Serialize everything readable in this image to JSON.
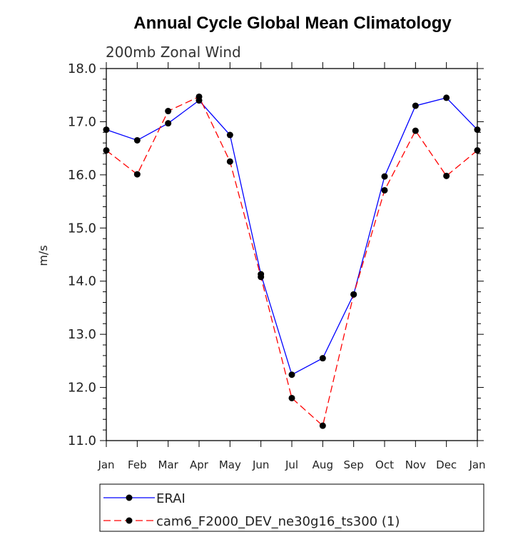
{
  "chart_data": {
    "type": "line",
    "title": "Annual Cycle Global Mean Climatology",
    "subtitle": "200mb Zonal Wind",
    "ylabel": "m/s",
    "xlabel": "",
    "categories": [
      "Jan",
      "Feb",
      "Mar",
      "Apr",
      "May",
      "Jun",
      "Jul",
      "Aug",
      "Sep",
      "Oct",
      "Nov",
      "Dec",
      "Jan"
    ],
    "ylim": [
      11.0,
      18.0
    ],
    "yticks": [
      "11.0",
      "12.0",
      "13.0",
      "14.0",
      "15.0",
      "16.0",
      "17.0",
      "18.0"
    ],
    "grid": false,
    "legend_position": "bottom",
    "series": [
      {
        "name": "ERAI",
        "color": "#0000ff",
        "dash": "solid",
        "values": [
          16.85,
          16.65,
          16.97,
          17.4,
          16.75,
          14.13,
          12.24,
          12.55,
          13.75,
          15.97,
          17.3,
          17.45,
          16.85
        ]
      },
      {
        "name": "cam6_F2000_DEV_ne30g16_ts300 (1)",
        "color": "#ff0000",
        "dash": "dashed",
        "values": [
          16.46,
          16.01,
          17.2,
          17.47,
          16.25,
          14.08,
          11.8,
          11.28,
          13.75,
          15.71,
          16.83,
          15.98,
          16.46
        ]
      }
    ]
  }
}
